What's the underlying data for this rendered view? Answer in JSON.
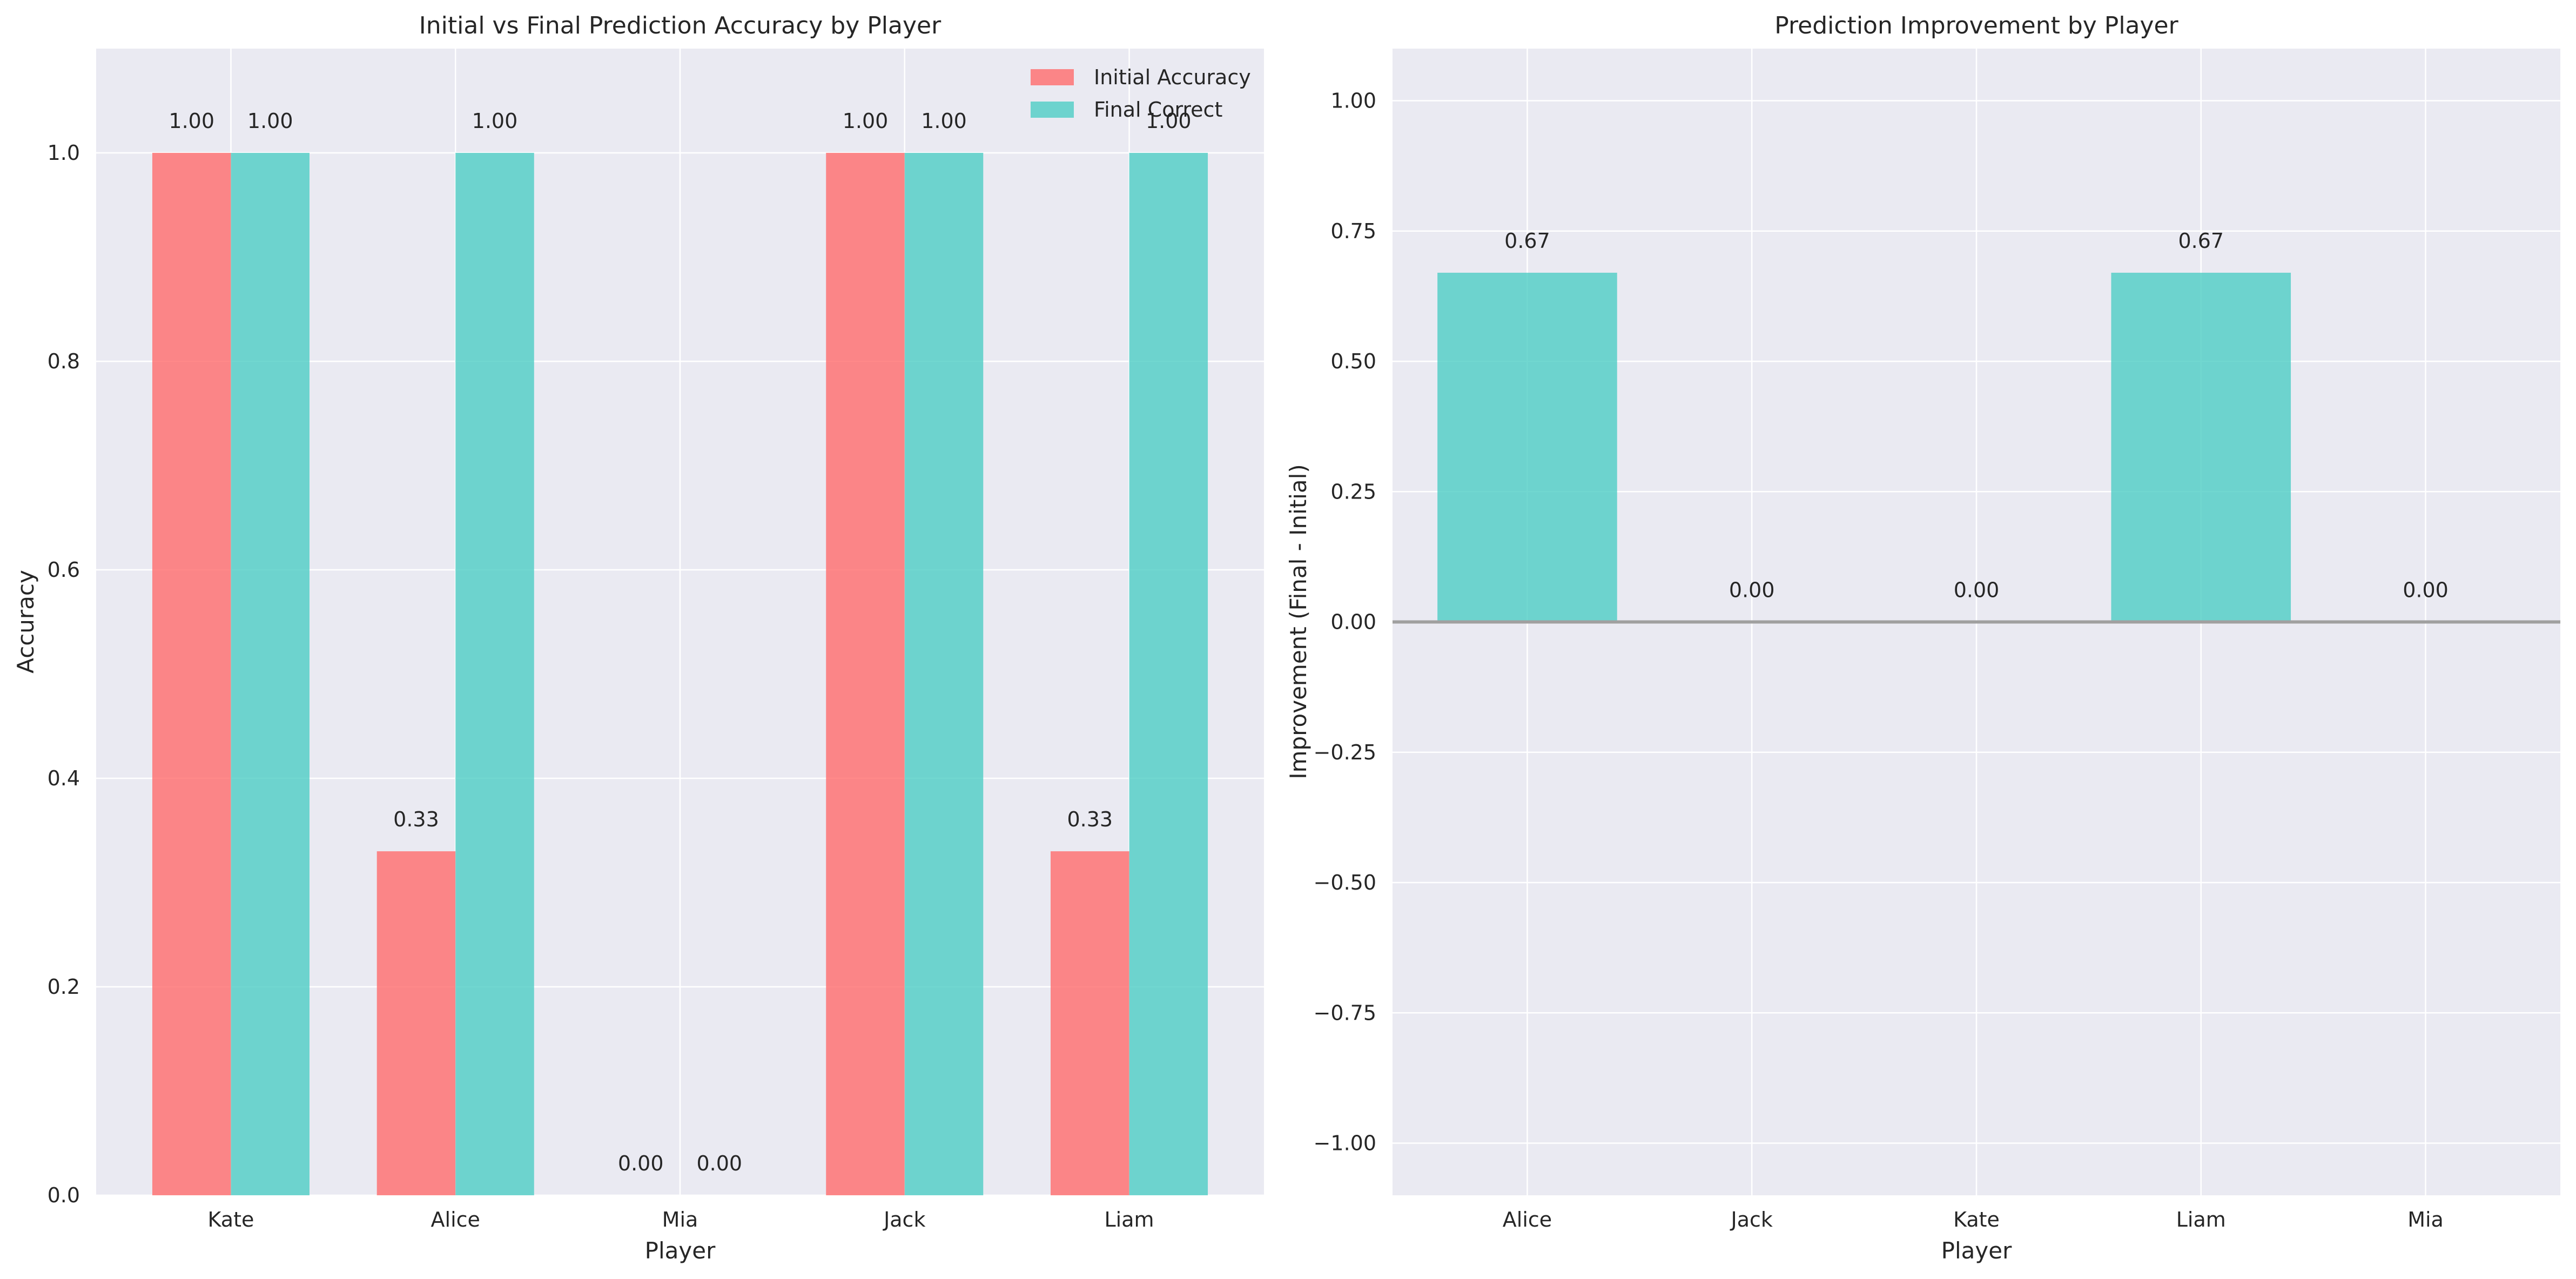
{
  "chart_data": [
    {
      "type": "bar",
      "title": "Initial vs Final Prediction Accuracy by Player",
      "xlabel": "Player",
      "ylabel": "Accuracy",
      "categories": [
        "Kate",
        "Alice",
        "Mia",
        "Jack",
        "Liam"
      ],
      "series": [
        {
          "name": "Initial Accuracy",
          "color": "#FF6B6B",
          "values": [
            1.0,
            0.33,
            0.0,
            1.0,
            0.33
          ],
          "labels": [
            "1.00",
            "0.33",
            "0.00",
            "1.00",
            "0.33"
          ]
        },
        {
          "name": "Final Correct",
          "color": "#4ECDC4",
          "values": [
            1.0,
            1.0,
            0.0,
            1.0,
            1.0
          ],
          "labels": [
            "1.00",
            "1.00",
            "0.00",
            "1.00",
            "1.00"
          ]
        }
      ],
      "ylim": [
        0,
        1.1
      ],
      "yticks": [
        0.0,
        0.2,
        0.4,
        0.6,
        0.8,
        1.0
      ],
      "ytick_labels": [
        "0.0",
        "0.2",
        "0.4",
        "0.6",
        "0.8",
        "1.0"
      ],
      "legend": "upper right",
      "grid": true
    },
    {
      "type": "bar",
      "title": "Prediction Improvement by Player",
      "xlabel": "Player",
      "ylabel": "Improvement (Final - Initial)",
      "categories": [
        "Alice",
        "Jack",
        "Kate",
        "Liam",
        "Mia"
      ],
      "values": [
        0.67,
        0.0,
        0.0,
        0.67,
        0.0
      ],
      "labels": [
        "0.67",
        "0.00",
        "0.00",
        "0.67",
        "0.00"
      ],
      "color": "#4ECDC4",
      "ylim": [
        -1.1,
        1.1
      ],
      "yticks": [
        -1.0,
        -0.75,
        -0.5,
        -0.25,
        0.0,
        0.25,
        0.5,
        0.75,
        1.0
      ],
      "ytick_labels": [
        "−1.00",
        "−0.75",
        "−0.50",
        "−0.25",
        "0.00",
        "0.25",
        "0.50",
        "0.75",
        "1.00"
      ],
      "zero_line": true,
      "grid": true
    }
  ]
}
